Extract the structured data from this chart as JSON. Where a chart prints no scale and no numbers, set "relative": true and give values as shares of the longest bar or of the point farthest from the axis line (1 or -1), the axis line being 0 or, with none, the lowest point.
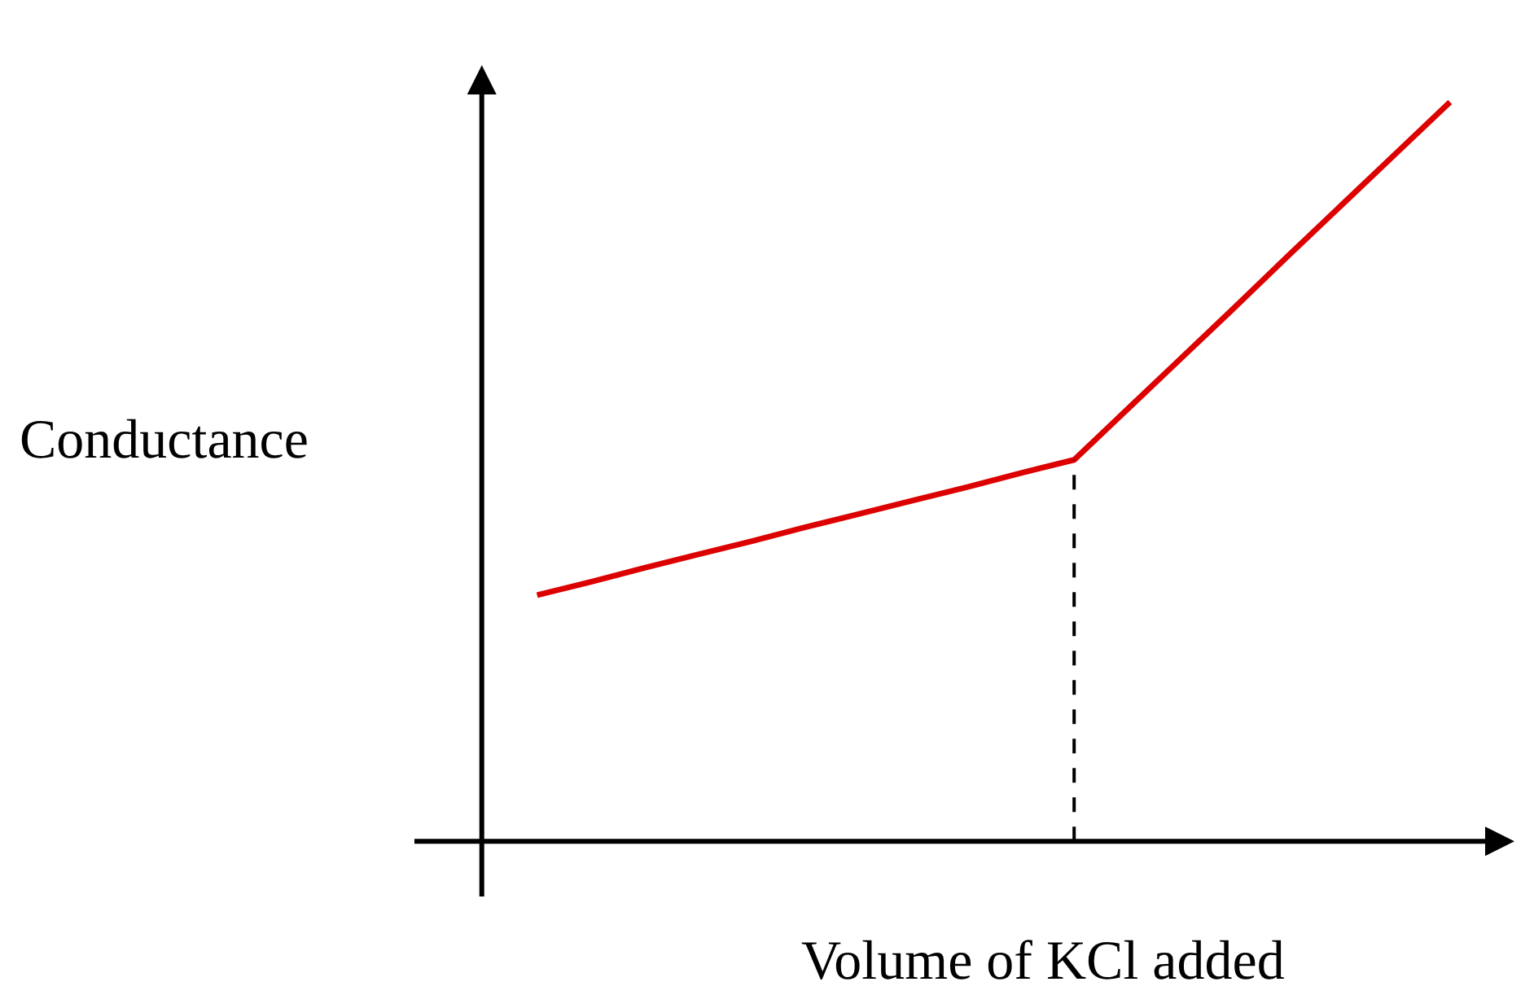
{
  "chart_data": {
    "type": "line",
    "xlabel": "Volume of KCl added",
    "ylabel": "Conductance",
    "relative": true,
    "categories": [
      null,
      null,
      null,
      null,
      null,
      null,
      null,
      null,
      null,
      null,
      null,
      null,
      null,
      null,
      null,
      null,
      null,
      null
    ],
    "series": [
      {
        "color": "#dd0000",
        "values": [
          0.333,
          0.351,
          0.37,
          0.388,
          0.406,
          0.425,
          0.443,
          0.461,
          0.479,
          0.498,
          0.516,
          0.585,
          0.654,
          0.723,
          0.793,
          0.862,
          0.931,
          1
        ]
      }
    ]
  }
}
